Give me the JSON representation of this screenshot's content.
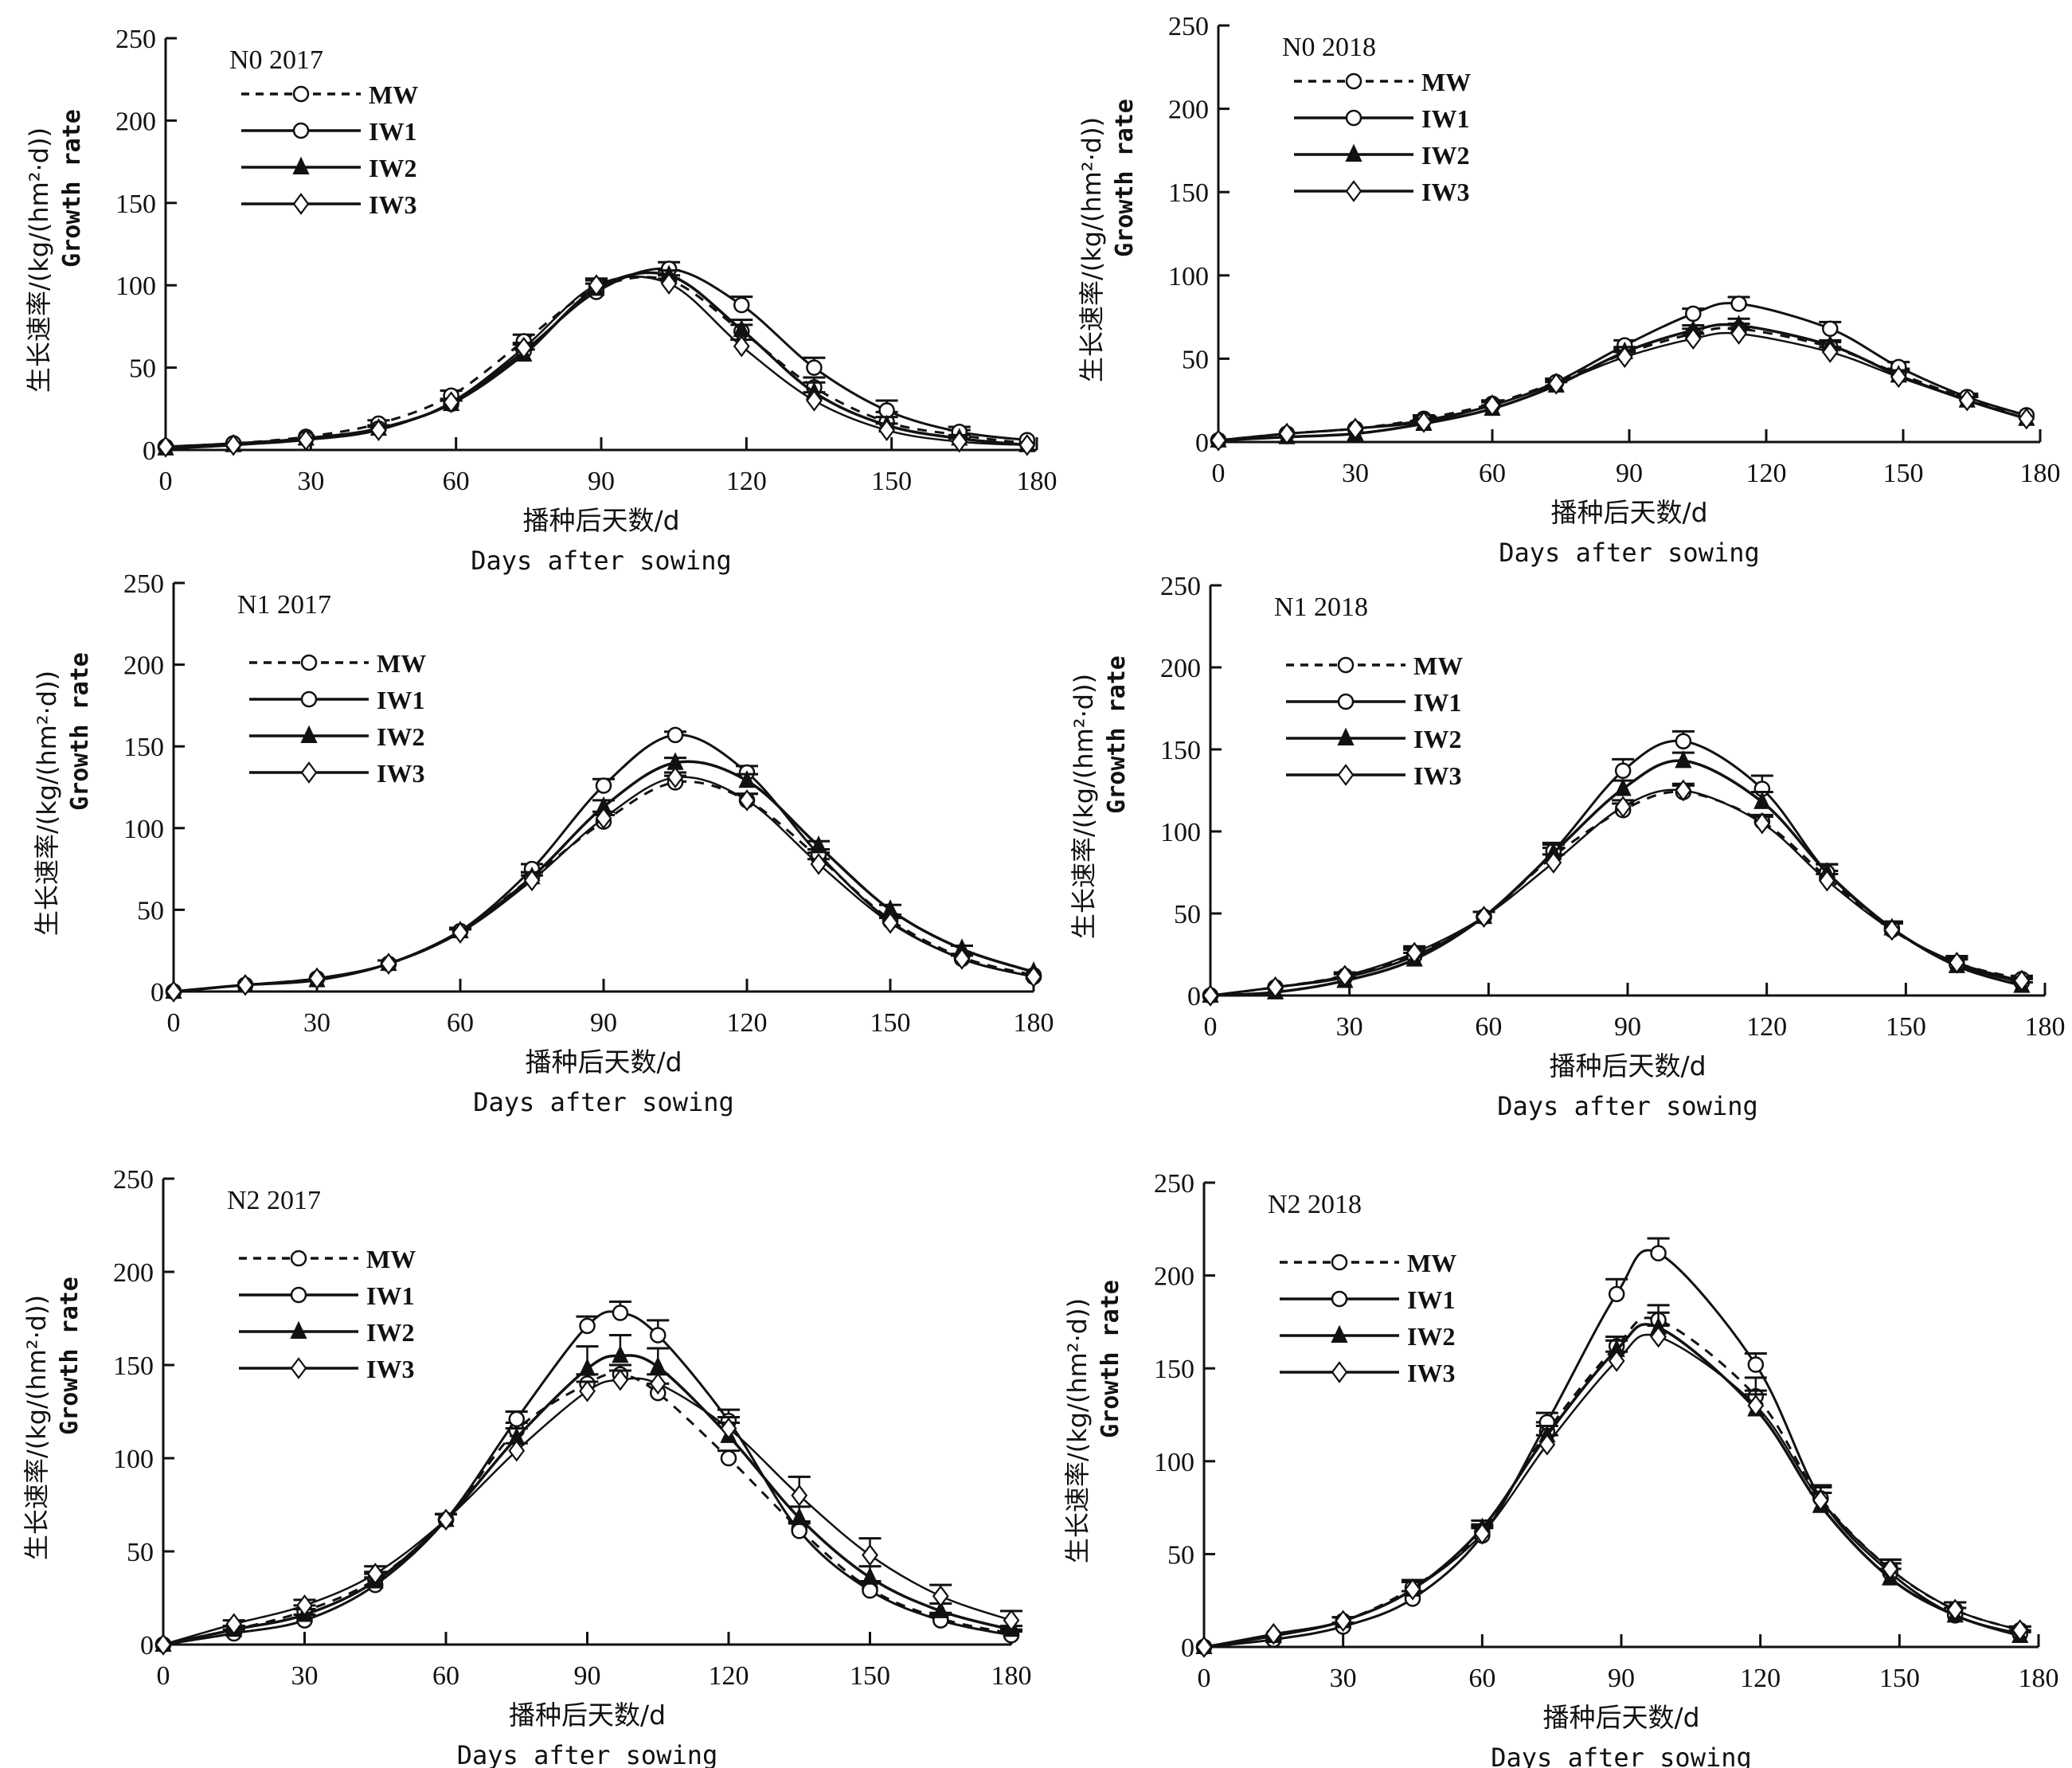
{
  "figure": {
    "xlabel_cn": "播种后天数/d",
    "xlabel_en": "Days after sowing",
    "ylabel_cn": "生长速率/(kg/(hm²·d))",
    "ylabel_en": "Growth rate"
  },
  "legend": [
    {
      "name": "MW",
      "line": "dashed",
      "marker": "open-circle"
    },
    {
      "name": "IW1",
      "line": "solid",
      "marker": "open-circle"
    },
    {
      "name": "IW2",
      "line": "solid",
      "marker": "filled-triangle"
    },
    {
      "name": "IW3",
      "line": "solid",
      "marker": "open-diamond"
    }
  ],
  "chart_data": [
    {
      "type": "line",
      "title": "N0 2017",
      "xlabel": "播种后天数/d Days after sowing",
      "ylabel": "生长速率/(kg/(hm²·d)) Growth rate",
      "xlim": [
        0,
        180
      ],
      "ylim": [
        0,
        250
      ],
      "xticks": [
        0,
        30,
        60,
        90,
        120,
        150,
        180
      ],
      "yticks": [
        0,
        50,
        100,
        150,
        200,
        250
      ],
      "legend_position": "top-left",
      "x": [
        0,
        14,
        29,
        44,
        59,
        74,
        89,
        104,
        119,
        134,
        149,
        164,
        178
      ],
      "series": [
        {
          "name": "MW",
          "values": [
            2,
            4,
            8,
            16,
            33,
            66,
            98,
            103,
            72,
            38,
            17,
            9,
            4
          ],
          "errors": [
            0,
            1,
            1,
            2,
            3,
            4,
            5,
            3,
            4,
            6,
            6,
            3,
            1
          ]
        },
        {
          "name": "IW1",
          "values": [
            2,
            4,
            7,
            13,
            28,
            60,
            96,
            110,
            88,
            50,
            24,
            11,
            6
          ],
          "errors": [
            0,
            1,
            1,
            2,
            2,
            4,
            5,
            4,
            5,
            6,
            6,
            3,
            1
          ]
        },
        {
          "name": "IW2",
          "values": [
            1,
            3,
            7,
            13,
            28,
            58,
            98,
            106,
            73,
            35,
            15,
            7,
            3
          ],
          "errors": [
            0,
            1,
            1,
            2,
            2,
            3,
            6,
            3,
            6,
            6,
            5,
            2,
            1
          ]
        },
        {
          "name": "IW3",
          "values": [
            2,
            3,
            6,
            12,
            29,
            62,
            100,
            101,
            63,
            30,
            12,
            5,
            3
          ],
          "errors": [
            0,
            1,
            1,
            2,
            2,
            3,
            4,
            3,
            4,
            5,
            4,
            2,
            1
          ]
        }
      ]
    },
    {
      "type": "line",
      "title": "N0 2018",
      "xlabel": "播种后天数/d Days after sowing",
      "ylabel": "生长速率/(kg/(hm²·d)) Growth rate",
      "xlim": [
        0,
        180
      ],
      "ylim": [
        0,
        250
      ],
      "xticks": [
        0,
        30,
        60,
        90,
        120,
        150,
        180
      ],
      "yticks": [
        0,
        50,
        100,
        150,
        200,
        250
      ],
      "legend_position": "top-left",
      "x": [
        0,
        15,
        30,
        45,
        60,
        74,
        89,
        104,
        114,
        134,
        149,
        164,
        177
      ],
      "series": [
        {
          "name": "MW",
          "values": [
            1,
            5,
            8,
            14,
            23,
            36,
            53,
            65,
            68,
            57,
            41,
            26,
            16
          ],
          "errors": [
            0,
            1,
            1,
            2,
            2,
            2,
            3,
            3,
            3,
            3,
            3,
            2,
            1
          ]
        },
        {
          "name": "IW1",
          "values": [
            1,
            5,
            8,
            13,
            22,
            36,
            58,
            77,
            83,
            68,
            45,
            27,
            16
          ],
          "errors": [
            0,
            1,
            1,
            2,
            2,
            2,
            3,
            3,
            4,
            4,
            3,
            2,
            1
          ]
        },
        {
          "name": "IW2",
          "values": [
            1,
            3,
            5,
            11,
            20,
            34,
            54,
            67,
            70,
            58,
            40,
            25,
            14
          ],
          "errors": [
            0,
            1,
            1,
            1,
            2,
            2,
            3,
            3,
            4,
            3,
            3,
            2,
            1
          ]
        },
        {
          "name": "IW3",
          "values": [
            1,
            5,
            8,
            12,
            22,
            35,
            51,
            62,
            65,
            54,
            39,
            25,
            14
          ],
          "errors": [
            0,
            1,
            1,
            2,
            2,
            2,
            3,
            3,
            3,
            3,
            3,
            2,
            1
          ]
        }
      ]
    },
    {
      "type": "line",
      "title": "N1 2017",
      "xlabel": "播种后天数/d Days after sowing",
      "ylabel": "生长速率/(kg/(hm²·d)) Growth rate",
      "xlim": [
        0,
        180
      ],
      "ylim": [
        0,
        250
      ],
      "xticks": [
        0,
        30,
        60,
        90,
        120,
        150,
        180
      ],
      "yticks": [
        0,
        50,
        100,
        150,
        200,
        250
      ],
      "legend_position": "top-left",
      "x": [
        0,
        15,
        30,
        45,
        60,
        75,
        90,
        105,
        120,
        135,
        150,
        165,
        180
      ],
      "series": [
        {
          "name": "MW",
          "values": [
            0,
            4,
            8,
            17,
            37,
            70,
            104,
            128,
            117,
            82,
            44,
            21,
            10
          ],
          "errors": [
            0,
            1,
            1,
            2,
            2,
            3,
            4,
            4,
            4,
            3,
            3,
            2,
            1
          ]
        },
        {
          "name": "IW1",
          "values": [
            0,
            4,
            8,
            17,
            37,
            75,
            126,
            157,
            134,
            84,
            43,
            20,
            9
          ],
          "errors": [
            0,
            1,
            1,
            2,
            2,
            3,
            4,
            2,
            4,
            3,
            3,
            2,
            1
          ]
        },
        {
          "name": "IW2",
          "values": [
            0,
            4,
            7,
            17,
            37,
            70,
            113,
            140,
            129,
            89,
            50,
            26,
            12
          ],
          "errors": [
            0,
            1,
            1,
            2,
            2,
            3,
            4,
            3,
            4,
            3,
            3,
            2,
            1
          ]
        },
        {
          "name": "IW3",
          "values": [
            0,
            4,
            8,
            17,
            36,
            68,
            106,
            131,
            117,
            78,
            42,
            20,
            9
          ],
          "errors": [
            0,
            1,
            1,
            2,
            2,
            3,
            4,
            3,
            4,
            3,
            3,
            2,
            1
          ]
        }
      ]
    },
    {
      "type": "line",
      "title": "N1 2018",
      "xlabel": "播种后天数/d Days after sowing",
      "ylabel": "生长速率/(kg/(hm²·d)) Growth rate",
      "xlim": [
        0,
        180
      ],
      "ylim": [
        0,
        250
      ],
      "xticks": [
        0,
        30,
        60,
        90,
        120,
        150,
        180
      ],
      "yticks": [
        0,
        50,
        100,
        150,
        200,
        250
      ],
      "legend_position": "top-left",
      "x": [
        0,
        14,
        29,
        44,
        59,
        74,
        89,
        102,
        119,
        133,
        147,
        161,
        175
      ],
      "series": [
        {
          "name": "MW",
          "values": [
            0,
            5,
            12,
            25,
            48,
            85,
            113,
            124,
            106,
            72,
            40,
            20,
            10
          ],
          "errors": [
            0,
            1,
            2,
            4,
            3,
            5,
            4,
            4,
            4,
            4,
            4,
            4,
            2
          ]
        },
        {
          "name": "IW1",
          "values": [
            0,
            5,
            11,
            24,
            48,
            88,
            137,
            155,
            126,
            75,
            41,
            19,
            8
          ],
          "errors": [
            0,
            1,
            2,
            4,
            3,
            5,
            7,
            6,
            8,
            5,
            4,
            4,
            2
          ]
        },
        {
          "name": "IW2",
          "values": [
            0,
            2,
            9,
            22,
            48,
            87,
            126,
            143,
            118,
            75,
            41,
            18,
            6
          ],
          "errors": [
            0,
            1,
            2,
            4,
            3,
            5,
            5,
            5,
            6,
            5,
            4,
            4,
            2
          ]
        },
        {
          "name": "IW3",
          "values": [
            0,
            5,
            12,
            26,
            48,
            81,
            115,
            125,
            105,
            70,
            40,
            20,
            9
          ],
          "errors": [
            0,
            1,
            2,
            4,
            3,
            5,
            4,
            4,
            4,
            4,
            4,
            4,
            2
          ]
        }
      ]
    },
    {
      "type": "line",
      "title": "N2 2017",
      "xlabel": "播种后天数/d Days after sowing",
      "ylabel": "生长速率/(kg/(hm²·d)) Growth rate",
      "xlim": [
        0,
        180
      ],
      "ylim": [
        0,
        250
      ],
      "xticks": [
        0,
        30,
        60,
        90,
        120,
        150,
        180
      ],
      "yticks": [
        0,
        50,
        100,
        150,
        200,
        250
      ],
      "legend_position": "top-left",
      "x": [
        0,
        15,
        30,
        45,
        60,
        75,
        90,
        97,
        105,
        120,
        135,
        150,
        165,
        180
      ],
      "series": [
        {
          "name": "MW",
          "values": [
            0,
            8,
            18,
            35,
            67,
            115,
            140,
            145,
            135,
            100,
            62,
            30,
            14,
            6
          ],
          "errors": [
            0,
            2,
            3,
            4,
            3,
            4,
            5,
            5,
            5,
            4,
            4,
            4,
            3,
            2
          ]
        },
        {
          "name": "IW1",
          "values": [
            0,
            6,
            13,
            32,
            67,
            121,
            171,
            178,
            166,
            120,
            61,
            29,
            13,
            5
          ],
          "errors": [
            0,
            2,
            3,
            4,
            3,
            4,
            5,
            6,
            8,
            6,
            4,
            4,
            3,
            2
          ]
        },
        {
          "name": "IW2",
          "values": [
            0,
            8,
            16,
            34,
            67,
            111,
            148,
            155,
            149,
            112,
            68,
            36,
            18,
            8
          ],
          "errors": [
            0,
            2,
            3,
            4,
            3,
            5,
            12,
            11,
            10,
            7,
            6,
            6,
            4,
            2
          ]
        },
        {
          "name": "IW3",
          "values": [
            0,
            11,
            21,
            38,
            67,
            104,
            136,
            142,
            140,
            116,
            80,
            48,
            26,
            13
          ],
          "errors": [
            0,
            2,
            3,
            4,
            3,
            4,
            5,
            5,
            5,
            6,
            10,
            9,
            6,
            5
          ]
        }
      ]
    },
    {
      "type": "line",
      "title": "N2 2018",
      "xlabel": "播种后天数/d Days after sowing",
      "ylabel": "生长速率/(kg/(hm²·d)) Growth rate",
      "xlim": [
        0,
        180
      ],
      "ylim": [
        0,
        250
      ],
      "xticks": [
        0,
        30,
        60,
        90,
        120,
        150,
        180
      ],
      "yticks": [
        0,
        50,
        100,
        150,
        200,
        250
      ],
      "legend_position": "top-left",
      "x": [
        0,
        15,
        30,
        45,
        60,
        74,
        89,
        98,
        119,
        133,
        148,
        162,
        176
      ],
      "series": [
        {
          "name": "MW",
          "values": [
            0,
            6,
            14,
            32,
            62,
            116,
            162,
            176,
            135,
            80,
            42,
            20,
            9
          ],
          "errors": [
            0,
            1,
            2,
            4,
            4,
            5,
            5,
            8,
            10,
            7,
            5,
            4,
            2
          ]
        },
        {
          "name": "IW1",
          "values": [
            0,
            4,
            11,
            26,
            60,
            121,
            190,
            212,
            152,
            80,
            40,
            17,
            7
          ],
          "errors": [
            0,
            1,
            2,
            4,
            4,
            5,
            8,
            8,
            6,
            7,
            5,
            4,
            2
          ]
        },
        {
          "name": "IW2",
          "values": [
            0,
            6,
            14,
            31,
            64,
            114,
            160,
            172,
            128,
            76,
            37,
            17,
            6
          ],
          "errors": [
            0,
            1,
            2,
            4,
            4,
            5,
            5,
            8,
            8,
            7,
            5,
            4,
            2
          ]
        },
        {
          "name": "IW3",
          "values": [
            0,
            7,
            14,
            31,
            61,
            109,
            154,
            167,
            130,
            79,
            42,
            20,
            9
          ],
          "errors": [
            0,
            1,
            2,
            4,
            4,
            5,
            5,
            6,
            8,
            7,
            5,
            4,
            2
          ]
        }
      ]
    }
  ]
}
